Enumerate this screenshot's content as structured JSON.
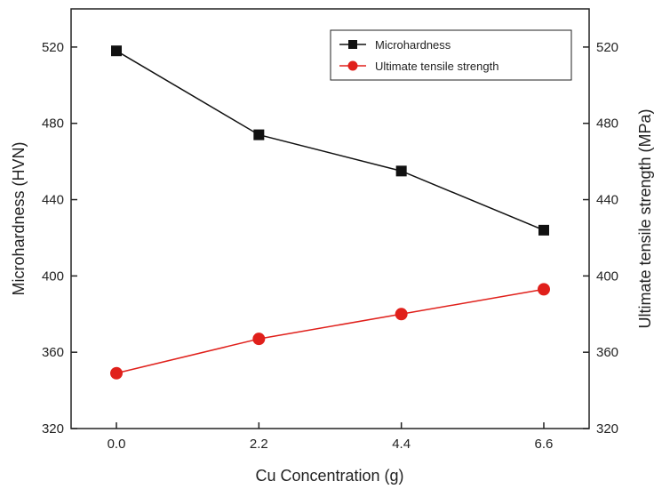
{
  "chart_data": {
    "type": "line",
    "xlabel": "Cu Concentration (g)",
    "ylabel_left": "Microhardness (HVN)",
    "ylabel_right": "Ultimate tensile strength (MPa)",
    "x": [
      0.0,
      2.2,
      4.4,
      6.6
    ],
    "x_tick_labels": [
      "0.0",
      "2.2",
      "4.4",
      "6.6"
    ],
    "xlim": [
      -0.7,
      7.3
    ],
    "ylim_left": [
      320,
      540
    ],
    "ylim_right": [
      320,
      540
    ],
    "y_ticks": [
      320,
      360,
      400,
      440,
      480,
      520
    ],
    "y_tick_labels": [
      "320",
      "360",
      "400",
      "440",
      "480",
      "520"
    ],
    "grid": false,
    "legend_position": "top-right",
    "series": [
      {
        "name": "Microhardness",
        "axis": "left",
        "values": [
          518,
          474,
          455,
          424
        ],
        "color": "#111111",
        "marker": "square"
      },
      {
        "name": "Ultimate tensile strength",
        "axis": "right",
        "values": [
          349,
          367,
          380,
          393
        ],
        "color": "#e0201b",
        "marker": "circle"
      }
    ]
  }
}
